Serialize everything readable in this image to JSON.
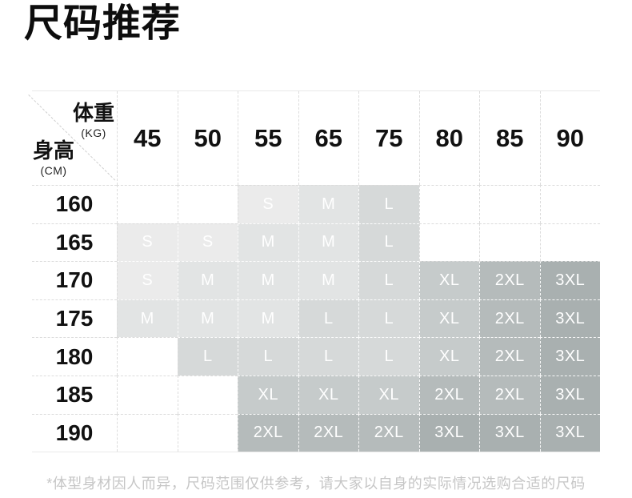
{
  "page": {
    "title": "尺码推荐",
    "footnote": "*体型身材因人而异，尺码范围仅供参考，请大家以自身的实际情况选购合适的尺码"
  },
  "chart_data": {
    "type": "table",
    "title": "尺码推荐",
    "col_axis": {
      "label": "体重",
      "unit": "(KG)"
    },
    "row_axis": {
      "label": "身高",
      "unit": "(CM)"
    },
    "columns": [
      "45",
      "50",
      "55",
      "65",
      "75",
      "80",
      "85",
      "90"
    ],
    "rows": [
      "160",
      "165",
      "170",
      "175",
      "180",
      "185",
      "190"
    ],
    "values": [
      [
        "",
        "",
        "S",
        "M",
        "L",
        "",
        "",
        ""
      ],
      [
        "S",
        "S",
        "M",
        "M",
        "L",
        "",
        "",
        ""
      ],
      [
        "S",
        "M",
        "M",
        "M",
        "L",
        "XL",
        "2XL",
        "3XL"
      ],
      [
        "M",
        "M",
        "M",
        "L",
        "L",
        "XL",
        "2XL",
        "3XL"
      ],
      [
        "",
        "L",
        "L",
        "L",
        "L",
        "XL",
        "2XL",
        "3XL"
      ],
      [
        "",
        "",
        "XL",
        "XL",
        "XL",
        "2XL",
        "2XL",
        "3XL"
      ],
      [
        "",
        "",
        "2XL",
        "2XL",
        "2XL",
        "3XL",
        "3XL",
        "3XL"
      ]
    ],
    "size_colors": {
      "S": "#ebebeb",
      "M": "#e2e4e4",
      "L": "#d6d9d9",
      "XL": "#c6cbcb",
      "2XL": "#b5bbbb",
      "3XL": "#a9b0b0"
    },
    "note": "*体型身材因人而异，尺码范围仅供参考，请大家以自身的实际情况选购合适的尺码"
  }
}
